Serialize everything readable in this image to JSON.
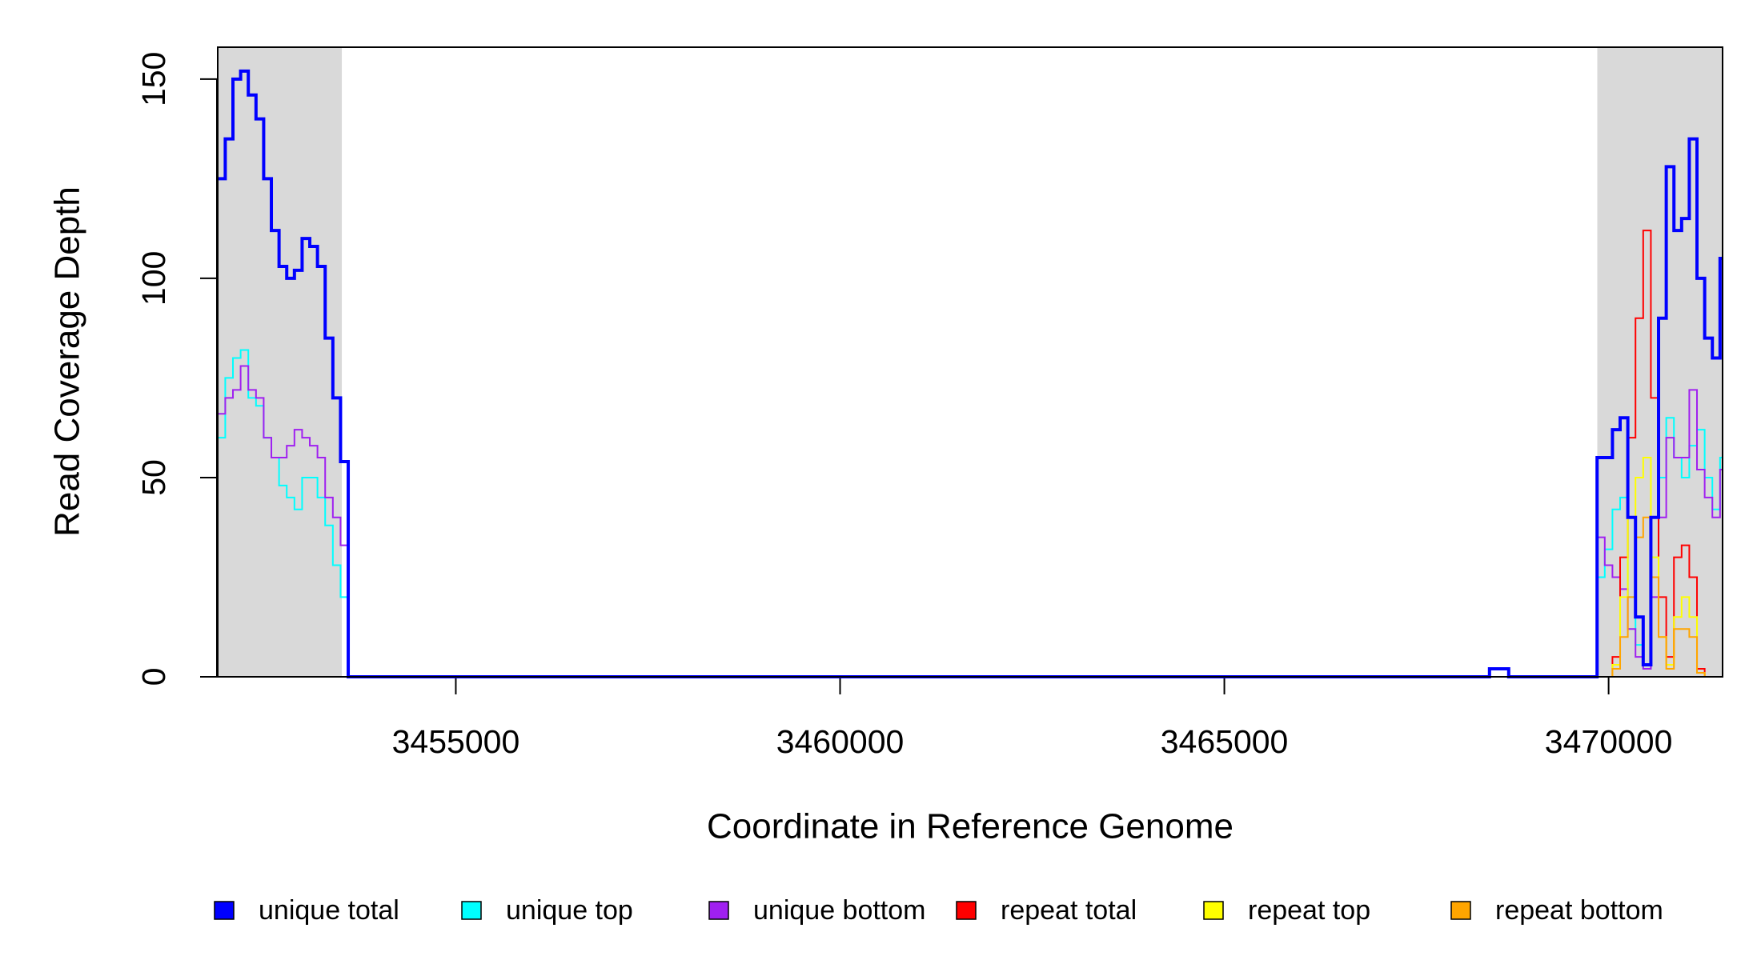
{
  "chart_data": {
    "type": "step",
    "xlabel": "Coordinate in Reference Genome",
    "ylabel": "Read Coverage Depth",
    "xlim": [
      3451902,
      3471483
    ],
    "ylim": [
      0,
      158
    ],
    "xticks": [
      3455000,
      3460000,
      3465000,
      3470000
    ],
    "yticks": [
      0,
      50,
      100,
      150
    ],
    "shaded_regions": [
      [
        3451902,
        3453517
      ],
      [
        3469853,
        3471483
      ]
    ],
    "x": [
      3451900,
      3452000,
      3452100,
      3452200,
      3452300,
      3452400,
      3452500,
      3452600,
      3452700,
      3452800,
      3452900,
      3453000,
      3453100,
      3453200,
      3453300,
      3453400,
      3453500,
      3453600,
      3468450,
      3468700,
      3469850,
      3469950,
      3470050,
      3470150,
      3470250,
      3470350,
      3470450,
      3470550,
      3470650,
      3470750,
      3470850,
      3470950,
      3471050,
      3471150,
      3471250,
      3471350,
      3471450
    ],
    "series": [
      {
        "name": "unique total",
        "color": "#0000ff",
        "values": [
          125,
          135,
          150,
          152,
          146,
          140,
          125,
          112,
          103,
          100,
          102,
          110,
          108,
          103,
          85,
          70,
          54,
          0,
          2,
          0,
          55,
          55,
          62,
          65,
          40,
          15,
          3,
          40,
          90,
          128,
          112,
          115,
          135,
          100,
          85,
          80,
          105
        ]
      },
      {
        "name": "unique top",
        "color": "#00ffff",
        "values": [
          60,
          75,
          80,
          82,
          70,
          68,
          60,
          55,
          48,
          45,
          42,
          50,
          50,
          45,
          38,
          28,
          20,
          0,
          0,
          0,
          25,
          32,
          42,
          45,
          20,
          8,
          2,
          30,
          50,
          65,
          55,
          50,
          58,
          62,
          50,
          42,
          55
        ]
      },
      {
        "name": "unique bottom",
        "color": "#a020f0",
        "values": [
          66,
          70,
          72,
          78,
          72,
          70,
          60,
          55,
          55,
          58,
          62,
          60,
          58,
          55,
          45,
          40,
          33,
          0,
          0,
          0,
          35,
          28,
          25,
          22,
          12,
          5,
          2,
          20,
          40,
          60,
          55,
          55,
          72,
          52,
          45,
          40,
          52
        ]
      },
      {
        "name": "repeat total",
        "color": "#ff0000",
        "values": [
          0,
          0,
          0,
          0,
          0,
          0,
          0,
          0,
          0,
          0,
          0,
          0,
          0,
          0,
          0,
          0,
          0,
          0,
          0,
          0,
          0,
          0,
          5,
          30,
          60,
          90,
          112,
          70,
          20,
          5,
          30,
          33,
          25,
          2,
          0,
          0,
          0
        ]
      },
      {
        "name": "repeat top",
        "color": "#ffff00",
        "values": [
          0,
          0,
          0,
          0,
          0,
          0,
          0,
          0,
          0,
          0,
          0,
          0,
          0,
          0,
          0,
          0,
          0,
          0,
          0,
          0,
          0,
          0,
          3,
          20,
          40,
          50,
          55,
          30,
          10,
          3,
          15,
          20,
          15,
          1,
          0,
          0,
          0
        ]
      },
      {
        "name": "repeat bottom",
        "color": "#ffa500",
        "values": [
          0,
          0,
          0,
          0,
          0,
          0,
          0,
          0,
          0,
          0,
          0,
          0,
          0,
          0,
          0,
          0,
          0,
          0,
          0,
          0,
          0,
          0,
          2,
          10,
          20,
          35,
          40,
          25,
          10,
          2,
          12,
          12,
          10,
          1,
          0,
          0,
          0
        ]
      }
    ]
  }
}
